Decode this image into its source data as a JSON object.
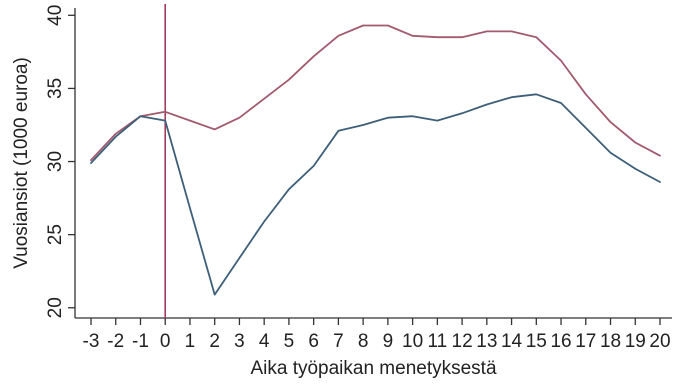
{
  "chart_data": {
    "type": "line",
    "title": "",
    "xlabel": "Aika työpaikan menetyksestä",
    "ylabel": "Vuosiansiot (1000 euroa)",
    "xlim": [
      -3,
      20
    ],
    "ylim": [
      19.3,
      40.5
    ],
    "x_ticks": [
      -3,
      -2,
      -1,
      0,
      1,
      2,
      3,
      4,
      5,
      6,
      7,
      8,
      9,
      10,
      11,
      12,
      13,
      14,
      15,
      16,
      17,
      18,
      19,
      20
    ],
    "x_tick_labels": [
      "-3",
      "-2",
      "-1",
      "0",
      "1",
      "2",
      "3",
      "4",
      "5",
      "6",
      "7",
      "8",
      "9",
      "10",
      "11",
      "12",
      "13",
      "14",
      "15",
      "16",
      "17",
      "18",
      "19",
      "20"
    ],
    "y_ticks": [
      20,
      25,
      30,
      35,
      40
    ],
    "y_tick_labels": [
      "20",
      "25",
      "30",
      "35",
      "40"
    ],
    "grid": false,
    "legend": "none",
    "reference_line_x": 0,
    "reference_line_color": "#a23c5c",
    "x": [
      -3,
      -2,
      -1,
      0,
      1,
      2,
      3,
      4,
      5,
      6,
      7,
      8,
      9,
      10,
      11,
      12,
      13,
      14,
      15,
      16,
      17,
      18,
      19,
      20
    ],
    "series": [
      {
        "color": "#a25a6e",
        "values": [
          30.1,
          31.9,
          33.1,
          33.4,
          32.8,
          32.2,
          33.0,
          34.3,
          35.6,
          37.2,
          38.6,
          39.3,
          39.3,
          38.6,
          38.5,
          38.5,
          38.9,
          38.9,
          38.5,
          36.9,
          34.6,
          32.7,
          31.3,
          30.4
        ]
      },
      {
        "color": "#3d5f79",
        "values": [
          29.9,
          31.7,
          33.1,
          32.8,
          26.8,
          20.9,
          23.4,
          25.9,
          28.1,
          29.7,
          32.1,
          32.5,
          33.0,
          33.1,
          32.8,
          33.3,
          33.9,
          34.4,
          34.6,
          34.0,
          32.3,
          30.6,
          29.5,
          28.6
        ]
      }
    ]
  }
}
